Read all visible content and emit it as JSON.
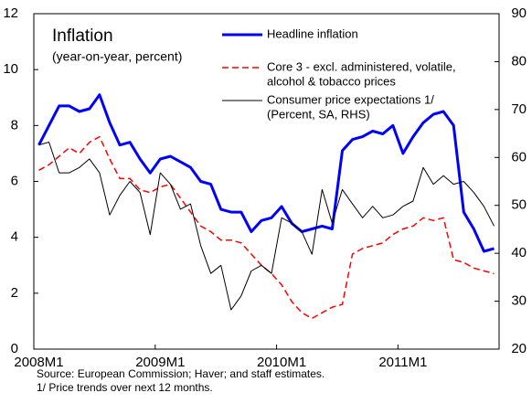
{
  "chart_data": {
    "type": "line",
    "title": "Inflation",
    "subtitle": "(year-on-year,  percent)",
    "categories": [
      "2008M1",
      null,
      null,
      null,
      null,
      null,
      null,
      null,
      null,
      null,
      null,
      null,
      "2009M1",
      null,
      null,
      null,
      null,
      null,
      null,
      null,
      null,
      null,
      null,
      null,
      "2010M1",
      null,
      null,
      null,
      null,
      null,
      null,
      null,
      null,
      null,
      null,
      null,
      "2011M1",
      null,
      null,
      null,
      null,
      null,
      null,
      null,
      null,
      null
    ],
    "ylim": [
      0,
      12
    ],
    "yticks": [
      0,
      2,
      4,
      6,
      8,
      10,
      12
    ],
    "y2lim": [
      20,
      90
    ],
    "y2ticks": [
      20,
      30,
      40,
      50,
      60,
      70,
      80,
      90
    ],
    "series": [
      {
        "name": [
          "Headline inflation"
        ],
        "color": "#0000ff",
        "style": "solid",
        "values": [
          7.3,
          8.0,
          8.7,
          8.7,
          8.5,
          8.6,
          9.1,
          8.1,
          7.3,
          7.4,
          6.8,
          6.3,
          6.8,
          6.9,
          6.7,
          6.5,
          6.0,
          5.9,
          5.0,
          4.9,
          4.9,
          4.2,
          4.6,
          4.7,
          5.1,
          4.5,
          4.2,
          4.3,
          4.4,
          4.3,
          7.1,
          7.5,
          7.6,
          7.8,
          7.7,
          8.0,
          7.0,
          7.6,
          8.1,
          8.4,
          8.5,
          8.0,
          4.9,
          4.3,
          3.5,
          3.6
        ]
      },
      {
        "name": [
          "Core 3 - excl. administered, volatile,",
          "alcohol & tobacco prices"
        ],
        "color": "#ff0000",
        "style": "dashed",
        "values": [
          6.4,
          6.6,
          6.9,
          7.2,
          7.0,
          7.4,
          7.6,
          6.8,
          6.1,
          6.1,
          5.7,
          5.6,
          5.8,
          5.9,
          5.4,
          4.9,
          4.4,
          4.2,
          3.9,
          3.9,
          3.8,
          3.4,
          3.0,
          2.7,
          2.3,
          1.7,
          1.3,
          1.1,
          1.3,
          1.5,
          1.6,
          3.4,
          3.6,
          3.7,
          3.8,
          4.1,
          4.3,
          4.4,
          4.7,
          4.6,
          4.7,
          3.2,
          3.1,
          2.9,
          2.8,
          2.7
        ]
      },
      {
        "name": [
          "Consumer price expectations 1/",
          "(Percent, SA, RHS)"
        ],
        "color": "#000000",
        "style": "thin",
        "axis": "y2",
        "values": [
          62.6,
          63.2,
          56.8,
          56.8,
          57.9,
          59.7,
          56.8,
          48.0,
          52.1,
          55.0,
          52.7,
          43.9,
          56.8,
          54.4,
          49.2,
          50.3,
          41.6,
          35.8,
          37.5,
          28.2,
          31.1,
          36.3,
          37.5,
          35.8,
          47.4,
          46.3,
          44.5,
          39.8,
          53.3,
          46.3,
          53.3,
          50.3,
          47.4,
          49.8,
          47.4,
          48.0,
          49.8,
          50.9,
          57.9,
          54.4,
          56.2,
          54.4,
          55.0,
          52.7,
          49.8,
          45.7
        ]
      }
    ],
    "notes": [
      "Source: European Commission; Haver; and staff estimates.",
      "1/ Price trends over next 12 months."
    ]
  }
}
